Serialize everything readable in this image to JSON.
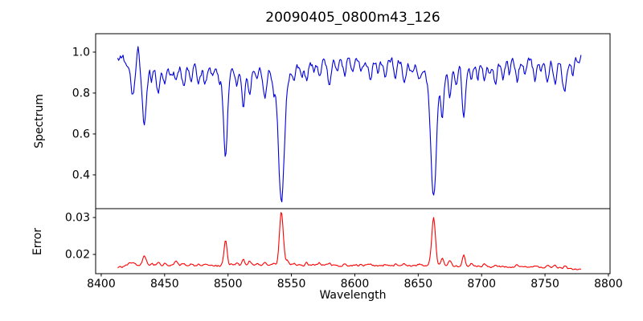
{
  "chart_data": {
    "type": "line",
    "title": "20090405_0800m43_126",
    "xlabel": "Wavelength",
    "xlim": [
      8395.6,
      8801.3
    ],
    "x_ticks": [
      8400,
      8450,
      8500,
      8550,
      8600,
      8650,
      8700,
      8750,
      8800
    ],
    "x_tick_labels": [
      "8400",
      "8450",
      "8500",
      "8550",
      "8600",
      "8650",
      "8700",
      "8750",
      "8800"
    ],
    "data_x_range": [
      8413,
      8779
    ],
    "sample_step": 0.7,
    "noise_seed": 20090405,
    "grid": false,
    "legend": null,
    "panels": [
      {
        "name": "spectrum",
        "ylabel": "Spectrum",
        "line_color": "#0000dd",
        "ylim": [
          0.235,
          1.09
        ],
        "y_ticks": [
          0.4,
          0.6,
          0.8,
          1.0
        ],
        "y_tick_labels": [
          "0.4",
          "0.6",
          "0.8",
          "1.0"
        ],
        "continuum": 0.975,
        "noise_amp": 0.025,
        "absorption_lines": [
          [
            8425,
            0.17,
            1.4
          ],
          [
            8429,
            -0.1,
            0.8
          ],
          [
            8434,
            0.32,
            1.6
          ],
          [
            8440,
            0.06,
            1.0
          ],
          [
            8445,
            0.15,
            1.3
          ],
          [
            8450,
            0.1,
            1.1
          ],
          [
            8455,
            0.07,
            1.0
          ],
          [
            8459,
            0.1,
            1.2
          ],
          [
            8465,
            0.12,
            1.3
          ],
          [
            8471,
            0.09,
            1.1
          ],
          [
            8477,
            0.1,
            1.2
          ],
          [
            8482,
            0.12,
            1.2
          ],
          [
            8488,
            0.07,
            1.0
          ],
          [
            8493,
            0.06,
            0.9
          ],
          [
            8498.0,
            0.47,
            1.5
          ],
          [
            8507,
            0.09,
            1.0
          ],
          [
            8512,
            0.21,
            1.1
          ],
          [
            8517,
            0.15,
            1.1
          ],
          [
            8523,
            0.07,
            1.0
          ],
          [
            8529,
            0.17,
            1.2
          ],
          [
            8536,
            0.09,
            1.0
          ],
          [
            8542.1,
            0.7,
            2.1
          ],
          [
            8552,
            0.08,
            1.0
          ],
          [
            8558,
            0.06,
            0.9
          ],
          [
            8562,
            0.09,
            1.2
          ],
          [
            8568,
            0.06,
            0.9
          ],
          [
            8572,
            0.08,
            1.0
          ],
          [
            8580,
            0.11,
            1.3
          ],
          [
            8586,
            0.06,
            0.9
          ],
          [
            8592,
            0.07,
            1.0
          ],
          [
            8598,
            0.06,
            0.9
          ],
          [
            8605,
            0.06,
            0.9
          ],
          [
            8612,
            0.11,
            1.2
          ],
          [
            8618,
            0.06,
            0.9
          ],
          [
            8624,
            0.07,
            1.0
          ],
          [
            8632,
            0.08,
            1.0
          ],
          [
            8639,
            0.12,
            1.2
          ],
          [
            8645,
            0.06,
            0.9
          ],
          [
            8651,
            0.07,
            0.9
          ],
          [
            8662.1,
            0.68,
            2.0
          ],
          [
            8669,
            0.24,
            1.0
          ],
          [
            8675,
            0.15,
            1.0
          ],
          [
            8680,
            0.08,
            0.9
          ],
          [
            8686,
            0.27,
            1.2
          ],
          [
            8692,
            0.1,
            1.0
          ],
          [
            8697,
            0.07,
            0.9
          ],
          [
            8702,
            0.09,
            1.0
          ],
          [
            8706,
            0.06,
            0.9
          ],
          [
            8711,
            0.12,
            1.2
          ],
          [
            8717,
            0.09,
            1.0
          ],
          [
            8722,
            0.06,
            0.9
          ],
          [
            8728,
            0.11,
            1.2
          ],
          [
            8734,
            0.07,
            0.9
          ],
          [
            8742,
            0.09,
            1.1
          ],
          [
            8747,
            0.06,
            0.9
          ],
          [
            8752,
            0.1,
            1.1
          ],
          [
            8758,
            0.11,
            1.1
          ],
          [
            8764,
            0.09,
            1.0
          ],
          [
            8766,
            0.13,
            0.9
          ],
          [
            8772,
            0.08,
            1.0
          ]
        ]
      },
      {
        "name": "error",
        "ylabel": "Error",
        "line_color": "#ff0000",
        "ylim": [
          0.0148,
          0.0324
        ],
        "y_ticks": [
          0.02,
          0.03
        ],
        "y_tick_labels": [
          "0.02",
          "0.03"
        ],
        "noise_amp": 0.00028,
        "baseline_points": [
          [
            8413,
            0.0164
          ],
          [
            8420,
            0.017
          ],
          [
            8428,
            0.0172
          ],
          [
            8440,
            0.017
          ],
          [
            8455,
            0.0171
          ],
          [
            8470,
            0.017
          ],
          [
            8485,
            0.017
          ],
          [
            8500,
            0.017
          ],
          [
            8515,
            0.017
          ],
          [
            8530,
            0.0171
          ],
          [
            8545,
            0.0172
          ],
          [
            8560,
            0.0171
          ],
          [
            8575,
            0.0171
          ],
          [
            8590,
            0.017
          ],
          [
            8605,
            0.017
          ],
          [
            8620,
            0.0169
          ],
          [
            8635,
            0.0169
          ],
          [
            8650,
            0.017
          ],
          [
            8665,
            0.017
          ],
          [
            8680,
            0.0169
          ],
          [
            8695,
            0.0168
          ],
          [
            8710,
            0.0167
          ],
          [
            8725,
            0.0166
          ],
          [
            8740,
            0.0166
          ],
          [
            8755,
            0.0165
          ],
          [
            8765,
            0.0163
          ],
          [
            8779,
            0.0159
          ]
        ],
        "peaks": [
          [
            8422,
            0.0006,
            1.2
          ],
          [
            8425,
            0.0008,
            1.2
          ],
          [
            8434,
            0.0026,
            1.4
          ],
          [
            8440,
            0.0005,
            1.0
          ],
          [
            8445,
            0.0007,
            1.1
          ],
          [
            8450,
            0.0005,
            1.0
          ],
          [
            8459,
            0.0013,
            1.2
          ],
          [
            8465,
            0.0007,
            1.1
          ],
          [
            8471,
            0.0005,
            1.0
          ],
          [
            8477,
            0.0005,
            1.0
          ],
          [
            8482,
            0.0006,
            1.0
          ],
          [
            8498,
            0.0068,
            1.2
          ],
          [
            8503,
            0.0006,
            1.0
          ],
          [
            8507,
            0.0006,
            1.0
          ],
          [
            8512,
            0.0019,
            1.0
          ],
          [
            8517,
            0.0012,
            1.0
          ],
          [
            8523,
            0.0005,
            0.9
          ],
          [
            8529,
            0.0009,
            1.0
          ],
          [
            8536,
            0.0006,
            0.9
          ],
          [
            8542.1,
            0.0143,
            1.5
          ],
          [
            8547,
            0.001,
            1.1
          ],
          [
            8552,
            0.0005,
            0.9
          ],
          [
            8562,
            0.0006,
            1.0
          ],
          [
            8572,
            0.0005,
            0.9
          ],
          [
            8580,
            0.0007,
            1.1
          ],
          [
            8592,
            0.0004,
            0.9
          ],
          [
            8605,
            0.0004,
            0.9
          ],
          [
            8612,
            0.0006,
            1.0
          ],
          [
            8624,
            0.0004,
            0.9
          ],
          [
            8632,
            0.0004,
            0.9
          ],
          [
            8639,
            0.0006,
            1.0
          ],
          [
            8651,
            0.0004,
            0.9
          ],
          [
            8662.1,
            0.0128,
            1.5
          ],
          [
            8669,
            0.0021,
            1.0
          ],
          [
            8675,
            0.0015,
            1.0
          ],
          [
            8686,
            0.0029,
            1.1
          ],
          [
            8692,
            0.0008,
            1.0
          ],
          [
            8702,
            0.0005,
            0.9
          ],
          [
            8711,
            0.0006,
            1.0
          ],
          [
            8728,
            0.0005,
            1.0
          ],
          [
            8742,
            0.0004,
            0.9
          ],
          [
            8752,
            0.0005,
            0.9
          ],
          [
            8758,
            0.0005,
            0.9
          ],
          [
            8766,
            0.0006,
            0.9
          ]
        ]
      }
    ],
    "axis_color": "#000000",
    "background_color": "#ffffff"
  }
}
